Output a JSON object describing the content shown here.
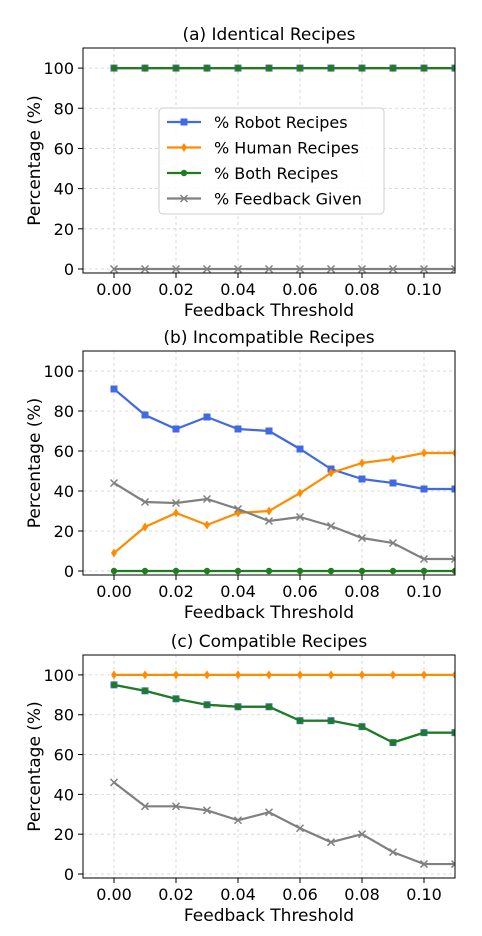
{
  "chart_data": [
    {
      "type": "line",
      "title": "(a) Identical Recipes",
      "xlabel": "Feedback Threshold",
      "ylabel": "Percentage (%)",
      "xlim": [
        -0.01,
        0.11
      ],
      "ylim": [
        -2,
        110
      ],
      "xticks": [
        0.0,
        0.02,
        0.04,
        0.06,
        0.08,
        0.1
      ],
      "xtick_labels": [
        "0.00",
        "0.02",
        "0.04",
        "0.06",
        "0.08",
        "0.10"
      ],
      "yticks": [
        0,
        20,
        40,
        60,
        80,
        100
      ],
      "ytick_labels": [
        "0",
        "20",
        "40",
        "60",
        "80",
        "100"
      ],
      "grid": true,
      "legend": "center-left",
      "x": [
        0.0,
        0.01,
        0.02,
        0.03,
        0.04,
        0.05,
        0.06,
        0.07,
        0.08,
        0.09,
        0.1,
        0.11
      ],
      "series": [
        {
          "name": "% Robot Recipes",
          "color": "#4169e1",
          "marker": "square",
          "values": [
            100,
            100,
            100,
            100,
            100,
            100,
            100,
            100,
            100,
            100,
            100,
            100
          ]
        },
        {
          "name": "% Human Recipes",
          "color": "#ff8c00",
          "marker": "diamond",
          "values": [
            100,
            100,
            100,
            100,
            100,
            100,
            100,
            100,
            100,
            100,
            100,
            100
          ]
        },
        {
          "name": "% Both Recipes",
          "color": "#1e7e1e",
          "marker": "circle",
          "values": [
            100,
            100,
            100,
            100,
            100,
            100,
            100,
            100,
            100,
            100,
            100,
            100
          ]
        },
        {
          "name": "% Feedback Given",
          "color": "#808080",
          "marker": "x",
          "values": [
            0,
            0,
            0,
            0,
            0,
            0,
            0,
            0,
            0,
            0,
            0,
            0
          ]
        }
      ]
    },
    {
      "type": "line",
      "title": "(b) Incompatible Recipes",
      "xlabel": "Feedback Threshold",
      "ylabel": "Percentage (%)",
      "xlim": [
        -0.01,
        0.11
      ],
      "ylim": [
        -2,
        110
      ],
      "xticks": [
        0.0,
        0.02,
        0.04,
        0.06,
        0.08,
        0.1
      ],
      "xtick_labels": [
        "0.00",
        "0.02",
        "0.04",
        "0.06",
        "0.08",
        "0.10"
      ],
      "yticks": [
        0,
        20,
        40,
        60,
        80,
        100
      ],
      "ytick_labels": [
        "0",
        "20",
        "40",
        "60",
        "80",
        "100"
      ],
      "grid": true,
      "x": [
        0.0,
        0.01,
        0.02,
        0.03,
        0.04,
        0.05,
        0.06,
        0.07,
        0.08,
        0.09,
        0.1,
        0.11
      ],
      "series": [
        {
          "color": "#4169e1",
          "marker": "square",
          "values": [
            91,
            78,
            71,
            77,
            71,
            70,
            61,
            51,
            46,
            44,
            41,
            41
          ]
        },
        {
          "color": "#ff8c00",
          "marker": "diamond",
          "values": [
            9,
            22,
            29,
            23,
            29,
            30,
            39,
            49,
            54,
            56,
            59,
            59
          ]
        },
        {
          "color": "#1e7e1e",
          "marker": "circle",
          "values": [
            0,
            0,
            0,
            0,
            0,
            0,
            0,
            0,
            0,
            0,
            0,
            0
          ]
        },
        {
          "color": "#808080",
          "marker": "x",
          "values": [
            44,
            34.5,
            34,
            36,
            31,
            25,
            27,
            22.5,
            16.5,
            14,
            6,
            6
          ]
        }
      ]
    },
    {
      "type": "line",
      "title": "(c) Compatible Recipes",
      "xlabel": "Feedback Threshold",
      "ylabel": "Percentage (%)",
      "xlim": [
        -0.01,
        0.11
      ],
      "ylim": [
        -2,
        110
      ],
      "xticks": [
        0.0,
        0.02,
        0.04,
        0.06,
        0.08,
        0.1
      ],
      "xtick_labels": [
        "0.00",
        "0.02",
        "0.04",
        "0.06",
        "0.08",
        "0.10"
      ],
      "yticks": [
        0,
        20,
        40,
        60,
        80,
        100
      ],
      "ytick_labels": [
        "0",
        "20",
        "40",
        "60",
        "80",
        "100"
      ],
      "grid": true,
      "x": [
        0.0,
        0.01,
        0.02,
        0.03,
        0.04,
        0.05,
        0.06,
        0.07,
        0.08,
        0.09,
        0.1,
        0.11
      ],
      "series": [
        {
          "color": "#4169e1",
          "marker": "square",
          "values": [
            95,
            92,
            88,
            85,
            84,
            84,
            77,
            77,
            74,
            66,
            71,
            71
          ]
        },
        {
          "color": "#ff8c00",
          "marker": "diamond",
          "values": [
            100,
            100,
            100,
            100,
            100,
            100,
            100,
            100,
            100,
            100,
            100,
            100
          ]
        },
        {
          "color": "#1e7e1e",
          "marker": "circle",
          "values": [
            95,
            92,
            88,
            85,
            84,
            84,
            77,
            77,
            74,
            66,
            71,
            71
          ]
        },
        {
          "color": "#808080",
          "marker": "x",
          "values": [
            46,
            34,
            34,
            32,
            27,
            31,
            23,
            16,
            20,
            11,
            5,
            5
          ]
        }
      ]
    }
  ]
}
